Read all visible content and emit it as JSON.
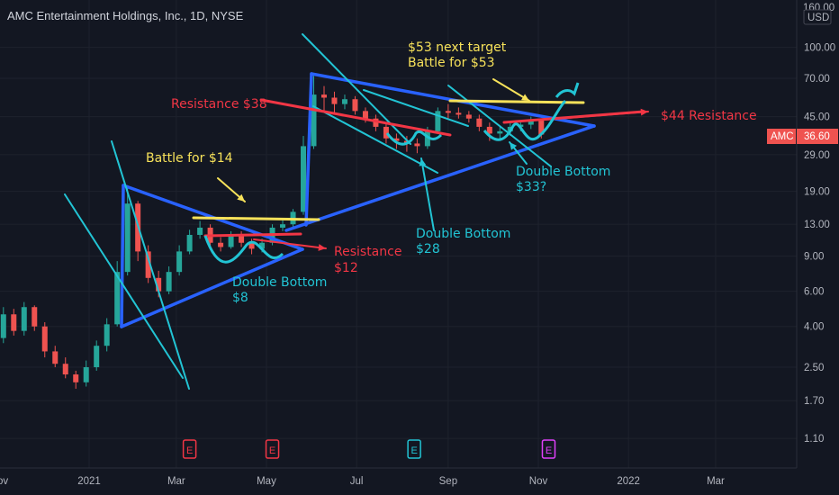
{
  "header": {
    "title": "AMC Entertainment Holdings, Inc., 1D, NYSE",
    "currency": "USD",
    "top_tick_partial": "160.00"
  },
  "price_tag": {
    "symbol": "AMC",
    "value": "36.60"
  },
  "colors": {
    "background": "#131722",
    "up_candle": "#26a69a",
    "down_candle": "#ef5350",
    "trend_blue": "#2962ff",
    "cyan": "#22c4d4",
    "yellow": "#f7e25a",
    "red": "#f23645",
    "grid": "#1e222d"
  },
  "earnings_markers": [
    "E",
    "E",
    "E",
    "E"
  ],
  "annotations": {
    "next_target": "$53 next target",
    "battle_53": "Battle for $53",
    "resistance_38": "Resistance $38",
    "resistance_44": "$44 Resistance",
    "battle_14": "Battle for $14",
    "resistance_12_line1": "Resistance",
    "resistance_12_line2": "$12",
    "double_bottom_8_line1": "Double Bottom",
    "double_bottom_8_line2": "$8",
    "double_bottom_28_line1": "Double Bottom",
    "double_bottom_28_line2": "$28",
    "double_bottom_33_line1": "Double Bottom",
    "double_bottom_33_line2": "$33?"
  },
  "chart_data": {
    "type": "candlestick",
    "title": "AMC Entertainment Holdings, Inc., 1D, NYSE",
    "y_scale": "log",
    "y_ticks": [
      "100.00",
      "70.00",
      "45.00",
      "29.00",
      "19.00",
      "13.00",
      "9.00",
      "6.00",
      "4.00",
      "2.50",
      "1.70",
      "1.10"
    ],
    "x_ticks": [
      "Nov",
      "2021",
      "Mar",
      "May",
      "Jul",
      "Sep",
      "Nov",
      "2022",
      "Mar"
    ],
    "ylim": [
      1.0,
      160
    ],
    "series": [
      {
        "dates": [
          "2020-10-28",
          "2020-11-04",
          "2020-11-11",
          "2020-11-18",
          "2020-11-25",
          "2020-12-02",
          "2020-12-09",
          "2020-12-16",
          "2020-12-23",
          "2020-12-30",
          "2021-01-06",
          "2021-01-13",
          "2021-01-20",
          "2021-01-27",
          "2021-02-03",
          "2021-02-10",
          "2021-02-17",
          "2021-02-24",
          "2021-03-03",
          "2021-03-10",
          "2021-03-17",
          "2021-03-24",
          "2021-03-31",
          "2021-04-07",
          "2021-04-14",
          "2021-04-21",
          "2021-04-28",
          "2021-05-05",
          "2021-05-12",
          "2021-05-19",
          "2021-05-26",
          "2021-06-02",
          "2021-06-09",
          "2021-06-16",
          "2021-06-23",
          "2021-06-30",
          "2021-07-07",
          "2021-07-14",
          "2021-07-21",
          "2021-07-28",
          "2021-08-04",
          "2021-08-11",
          "2021-08-18",
          "2021-08-25",
          "2021-09-01",
          "2021-09-08",
          "2021-09-15",
          "2021-09-22",
          "2021-09-29",
          "2021-10-06",
          "2021-10-13",
          "2021-10-20",
          "2021-10-27",
          "2021-11-03"
        ],
        "open": [
          2.6,
          3.5,
          4.6,
          3.8,
          5.0,
          4.0,
          3.0,
          2.6,
          2.3,
          2.1,
          2.5,
          3.2,
          4.1,
          7.5,
          16.5,
          9.5,
          7.0,
          6.0,
          7.5,
          9.5,
          11.5,
          12.5,
          10.5,
          10.0,
          11.5,
          10.5,
          9.8,
          10.5,
          12.5,
          13.0,
          15.0,
          32.0,
          58.0,
          56.0,
          52.0,
          55.0,
          48.0,
          44.0,
          40.0,
          35.0,
          34.0,
          33.0,
          32.0,
          38.0,
          48.0,
          47.0,
          46.0,
          44.0,
          40.0,
          37.0,
          38.0,
          40.0,
          41.0,
          43.0
        ],
        "close": [
          3.5,
          4.6,
          3.8,
          5.0,
          4.0,
          3.0,
          2.6,
          2.3,
          2.1,
          2.5,
          3.2,
          4.1,
          7.5,
          16.5,
          9.5,
          7.0,
          6.0,
          7.5,
          9.5,
          11.5,
          12.5,
          10.5,
          10.0,
          11.5,
          10.5,
          9.8,
          10.5,
          12.5,
          13.0,
          15.0,
          32.0,
          58.0,
          56.0,
          52.0,
          55.0,
          48.0,
          44.0,
          40.0,
          35.0,
          34.0,
          33.0,
          32.0,
          38.0,
          48.0,
          47.0,
          46.0,
          44.0,
          40.0,
          37.0,
          38.0,
          40.0,
          41.0,
          43.0,
          36.6
        ],
        "high": [
          3.8,
          5.0,
          4.9,
          5.3,
          5.1,
          4.2,
          3.2,
          2.8,
          2.4,
          2.7,
          3.4,
          4.4,
          8.5,
          20.4,
          17.0,
          10.2,
          7.6,
          8.0,
          10.2,
          12.2,
          13.5,
          13.0,
          11.2,
          12.0,
          12.0,
          11.0,
          11.0,
          13.0,
          13.8,
          15.5,
          36.0,
          72.0,
          64.0,
          60.0,
          58.0,
          57.0,
          50.0,
          46.0,
          42.0,
          37.0,
          36.0,
          35.0,
          40.0,
          50.0,
          52.0,
          50.0,
          48.0,
          46.0,
          42.0,
          40.0,
          42.0,
          43.0,
          45.0,
          44.0
        ],
        "low": [
          2.4,
          3.3,
          3.6,
          3.6,
          3.8,
          2.8,
          2.5,
          2.2,
          1.95,
          2.0,
          2.4,
          3.0,
          4.0,
          7.2,
          8.5,
          6.6,
          5.6,
          5.8,
          7.2,
          9.2,
          11.0,
          10.0,
          9.5,
          9.8,
          10.0,
          9.2,
          9.4,
          10.2,
          12.0,
          12.6,
          14.5,
          31.0,
          48.0,
          47.0,
          49.0,
          46.0,
          42.0,
          38.0,
          33.0,
          31.0,
          30.0,
          29.5,
          31.0,
          37.0,
          44.0,
          44.0,
          42.0,
          38.0,
          34.0,
          34.0,
          36.0,
          38.0,
          39.0,
          35.0
        ]
      }
    ],
    "levels": [
      {
        "label": "Resistance $38",
        "value": 38
      },
      {
        "label": "$44 Resistance",
        "value": 44
      },
      {
        "label": "Battle for $14",
        "value": 14
      },
      {
        "label": "Resistance $12",
        "value": 12
      },
      {
        "label": "Double Bottom $8",
        "value": 8
      },
      {
        "label": "Double Bottom $28",
        "value": 28
      },
      {
        "label": "Double Bottom $33?",
        "value": 33
      }
    ],
    "grid": true
  }
}
